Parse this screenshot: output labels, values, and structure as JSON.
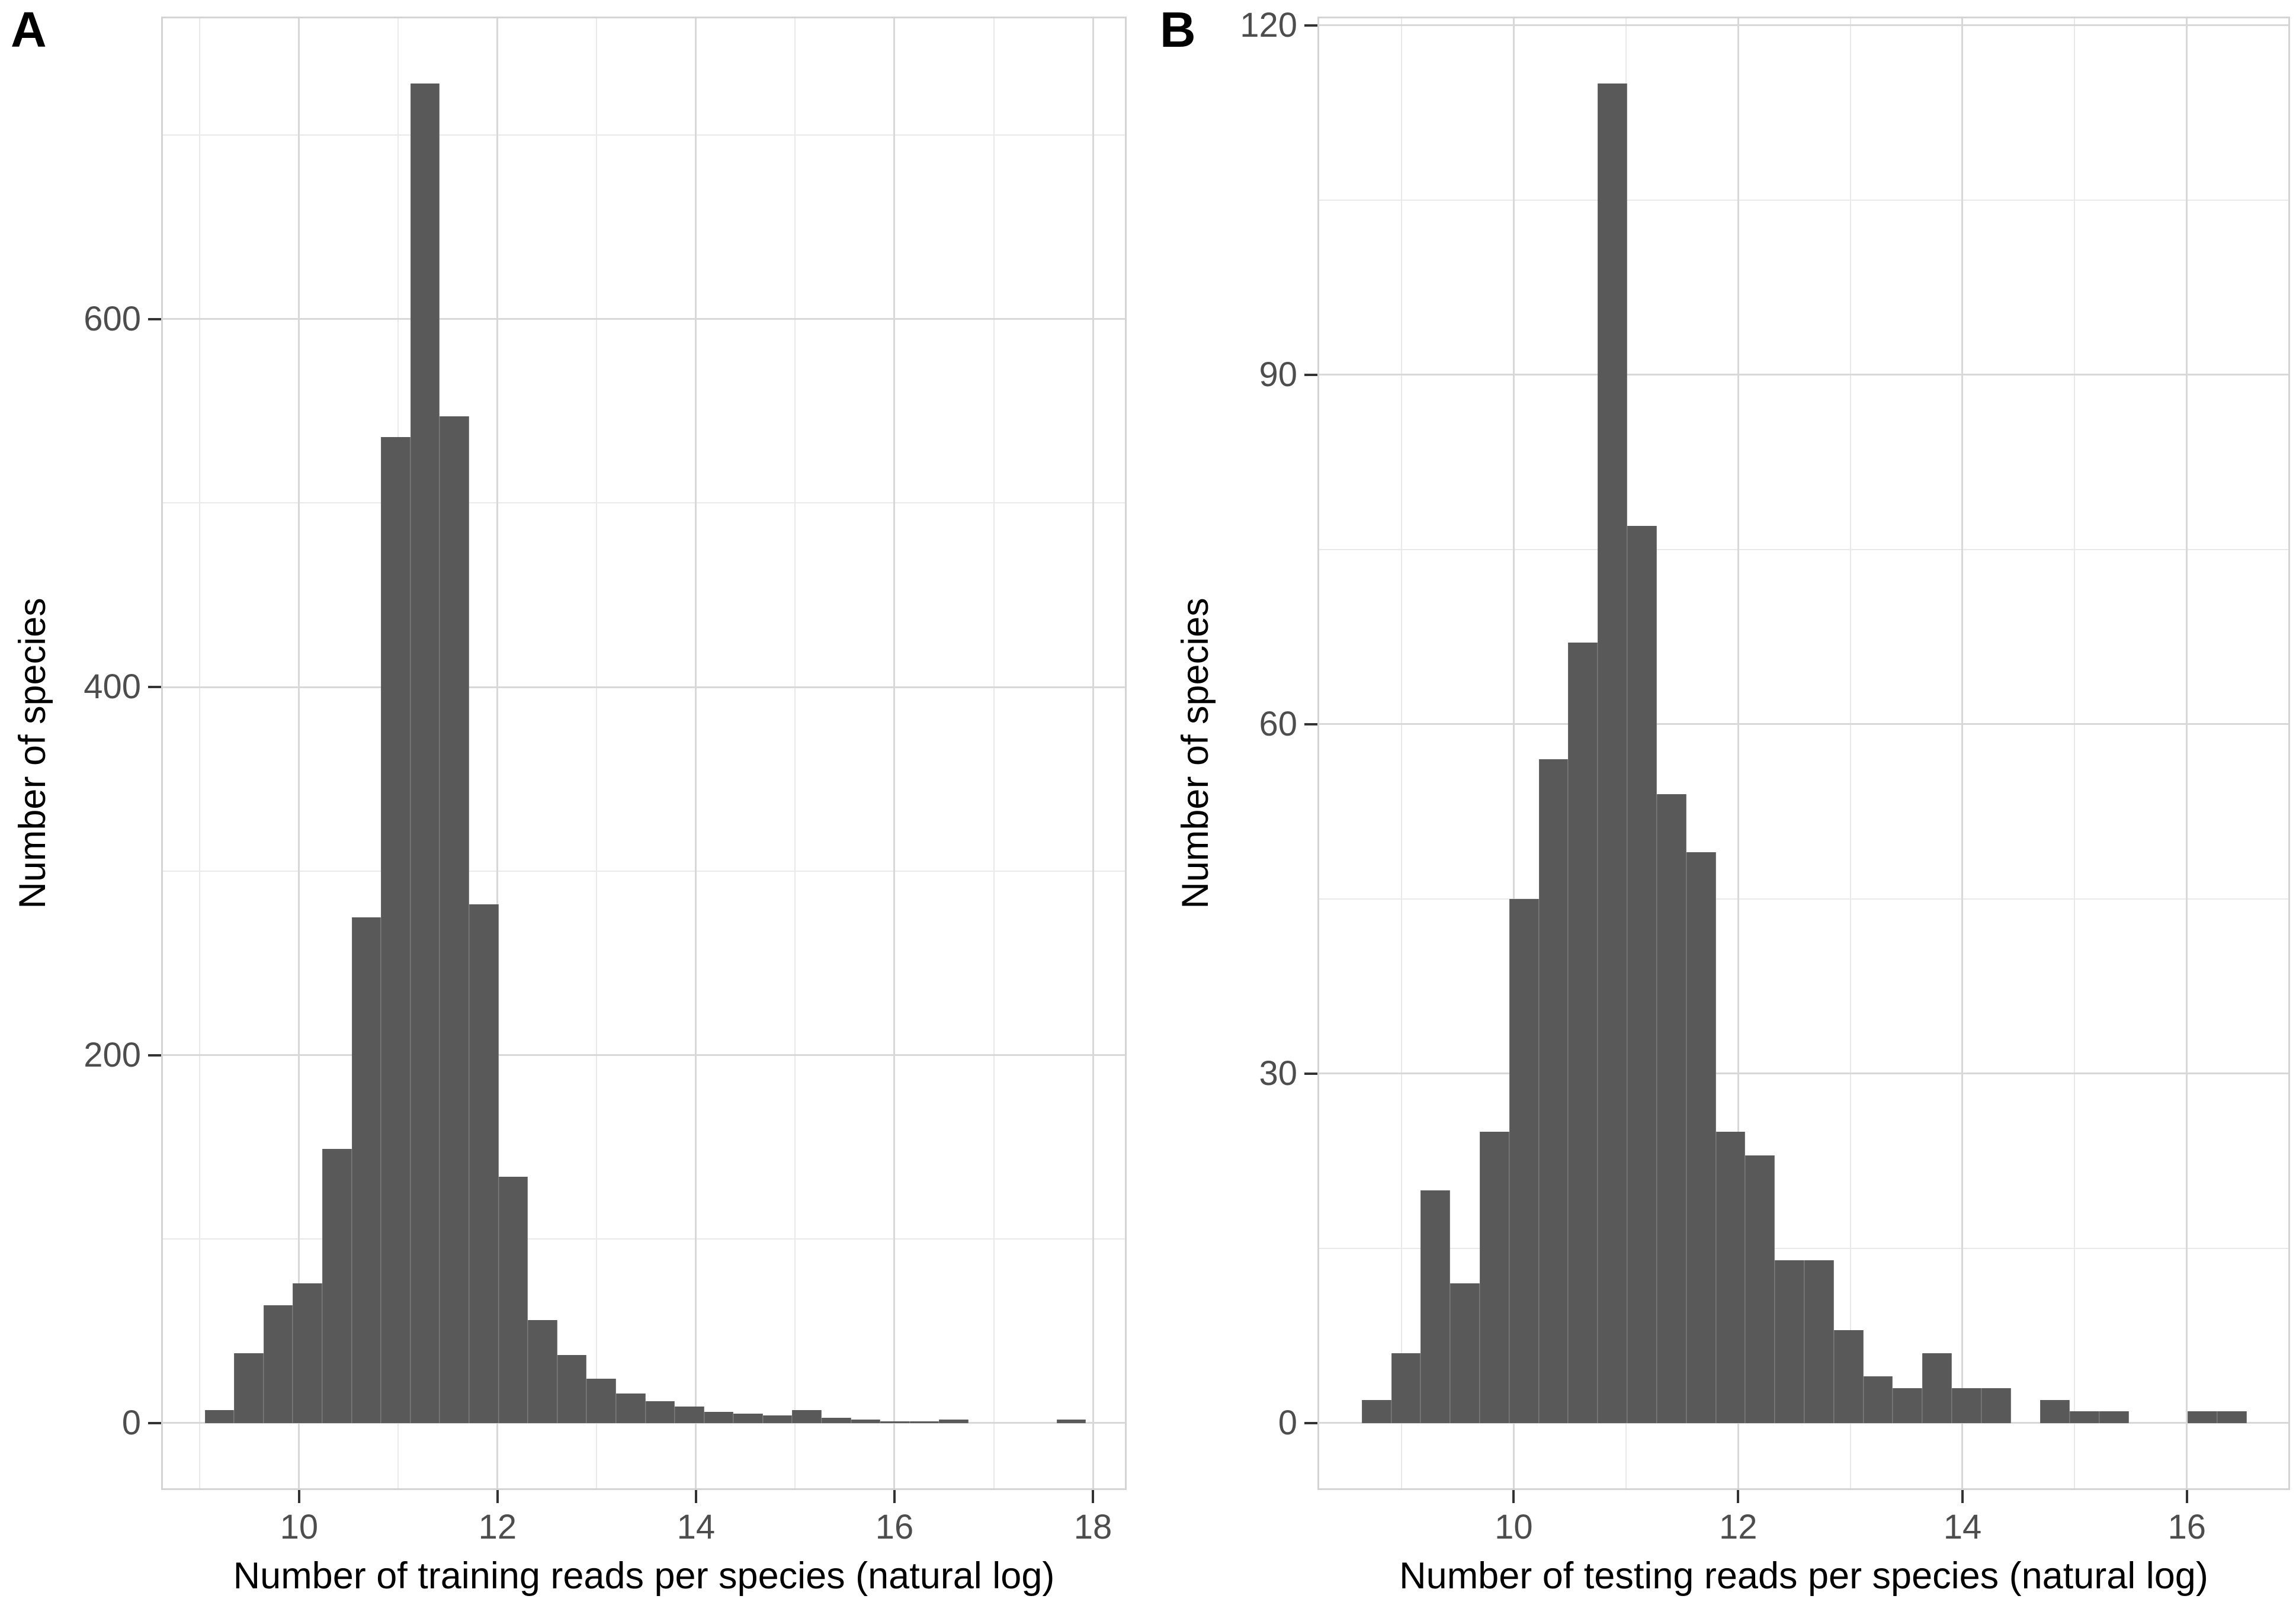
{
  "figure": {
    "background": "#ffffff",
    "description_tags": [
      "A",
      "B"
    ]
  },
  "chart_data": [
    {
      "type": "bar",
      "subtype": "histogram",
      "panel_tag": "A",
      "title": "",
      "xlabel": "Number of training reads per species (natural log)",
      "ylabel": "Number of species",
      "bin_start": 9.05,
      "bin_width": 0.296,
      "values": [
        7,
        38,
        64,
        76,
        149,
        275,
        536,
        728,
        547,
        282,
        134,
        56,
        37,
        24,
        16,
        12,
        9,
        6,
        5,
        4,
        7,
        3,
        2,
        1,
        1,
        2,
        0,
        0,
        0,
        2
      ],
      "xlim": [
        8.61,
        18.34
      ],
      "ylim": [
        -36.4,
        764.4
      ],
      "x_ticks": [
        10,
        12,
        14,
        16,
        18
      ],
      "x_minor_ticks": [
        9,
        11,
        13,
        15,
        17
      ],
      "y_ticks": [
        0,
        200,
        400,
        600
      ],
      "y_minor_ticks": [
        100,
        300,
        500,
        700
      ],
      "grid": "on",
      "legend": "none"
    },
    {
      "type": "bar",
      "subtype": "histogram",
      "panel_tag": "B",
      "title": "",
      "xlabel": "Number of testing reads per species (natural log)",
      "ylabel": "Number of species",
      "bin_start": 8.645,
      "bin_width": 0.263,
      "values": [
        2,
        6,
        20,
        12,
        25,
        45,
        57,
        67,
        115,
        77,
        54,
        49,
        25,
        23,
        14,
        14,
        8,
        4,
        3,
        6,
        3,
        3,
        0,
        2,
        1,
        1,
        0,
        0,
        1,
        1
      ],
      "xlim": [
        8.25,
        16.92
      ],
      "ylim": [
        -5.75,
        120.75
      ],
      "x_ticks": [
        10,
        12,
        14,
        16
      ],
      "x_minor_ticks": [
        9,
        11,
        13,
        15
      ],
      "y_ticks": [
        0,
        30,
        60,
        90,
        120
      ],
      "y_minor_ticks": [
        15,
        45,
        75,
        105
      ],
      "grid": "on",
      "legend": "none"
    }
  ],
  "colors": {
    "bar_fill": "#595959",
    "grid_major": "#d8d8d8",
    "grid_minor": "#e9e9e9",
    "panel_border": "#d4d4d4",
    "tick_mark": "#333333",
    "tick_label": "#4d4d4d",
    "axis_title": "#000000",
    "panel_tag": "#000000",
    "background": "#ffffff"
  }
}
